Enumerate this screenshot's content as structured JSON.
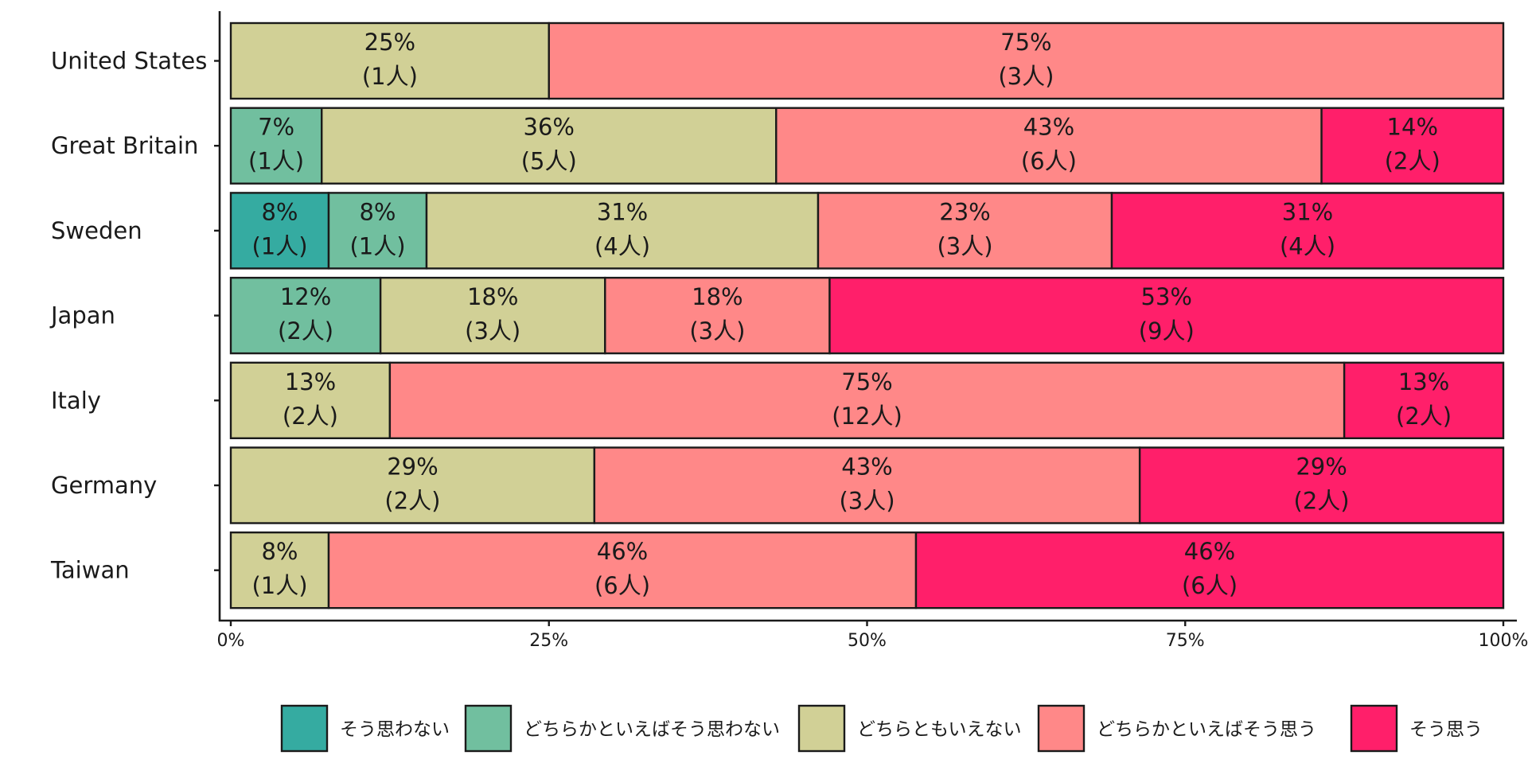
{
  "chart_data": {
    "type": "bar",
    "orientation": "horizontal",
    "stacked": "percent",
    "title": "",
    "xlabel": "",
    "ylabel": "",
    "xlim": [
      0,
      100
    ],
    "x_ticks": [
      "0%",
      "25%",
      "50%",
      "75%",
      "100%"
    ],
    "x_tick_values": [
      0,
      25,
      50,
      75,
      100
    ],
    "count_unit": "人",
    "categories": [
      "United States",
      "Great Britain",
      "Sweden",
      "Japan",
      "Italy",
      "Germany",
      "Taiwan"
    ],
    "series": [
      {
        "name": "そう思わない",
        "color": "#35ABA1",
        "counts": [
          0,
          0,
          1,
          0,
          0,
          0,
          0
        ]
      },
      {
        "name": "どちらかといえばそう思わない",
        "color": "#71BF9F",
        "counts": [
          0,
          1,
          1,
          2,
          0,
          0,
          0
        ]
      },
      {
        "name": "どちらともいえない",
        "color": "#D1D096",
        "counts": [
          1,
          5,
          4,
          3,
          2,
          2,
          1
        ]
      },
      {
        "name": "どちらかといえばそう思う",
        "color": "#FF8888",
        "counts": [
          3,
          6,
          3,
          3,
          12,
          3,
          6
        ]
      },
      {
        "name": "そう思う",
        "color": "#FF1F6A",
        "counts": [
          0,
          2,
          4,
          9,
          2,
          2,
          6
        ]
      }
    ],
    "legend_position": "bottom",
    "grid": false
  }
}
